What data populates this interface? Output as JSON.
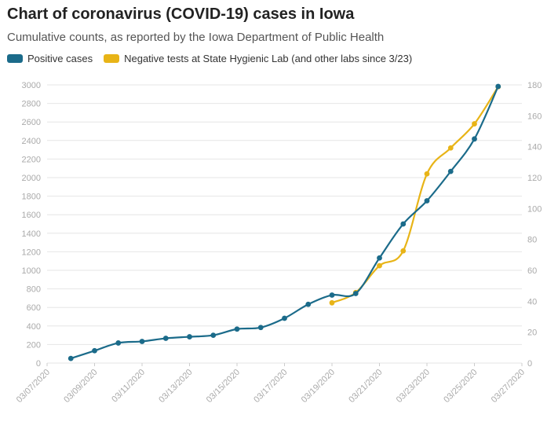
{
  "title": "Chart of coronavirus (COVID-19) cases in Iowa",
  "subtitle": "Cumulative counts, as reported by the Iowa Department of Public Health",
  "colors": {
    "positive": "#1b6b8a",
    "negative": "#e8b417",
    "grid": "#e6e6e6",
    "tick": "#aaaaaa"
  },
  "chart_data": {
    "type": "line",
    "x_dates": [
      "03/07/2020",
      "03/08/2020",
      "03/09/2020",
      "03/10/2020",
      "03/11/2020",
      "03/12/2020",
      "03/13/2020",
      "03/14/2020",
      "03/15/2020",
      "03/16/2020",
      "03/17/2020",
      "03/18/2020",
      "03/19/2020",
      "03/20/2020",
      "03/21/2020",
      "03/22/2020",
      "03/23/2020",
      "03/24/2020",
      "03/25/2020",
      "03/26/2020",
      "03/27/2020"
    ],
    "x_tick_labels": [
      "03/07/2020",
      "03/09/2020",
      "03/11/2020",
      "03/13/2020",
      "03/15/2020",
      "03/17/2020",
      "03/19/2020",
      "03/21/2020",
      "03/23/2020",
      "03/25/2020",
      "03/27/2020"
    ],
    "y_left_ticks": [
      "0",
      "200",
      "400",
      "600",
      "800",
      "1000",
      "1200",
      "1400",
      "1600",
      "1800",
      "2000",
      "2200",
      "2400",
      "2600",
      "2800",
      "3000"
    ],
    "y_right_ticks": [
      "0",
      "20",
      "40",
      "60",
      "80",
      "100",
      "120",
      "140",
      "160",
      "180"
    ],
    "ylim_left": [
      0,
      3000
    ],
    "ylim_right": [
      0,
      180
    ],
    "grid": true,
    "legend_position": "top-left",
    "series": [
      {
        "name": "Negative tests at State Hygienic Lab (and other labs since 3/23)",
        "axis": "left",
        "color": "#e8b417",
        "points": [
          {
            "x": "03/19/2020",
            "y": 650
          },
          {
            "x": "03/20/2020",
            "y": 760
          },
          {
            "x": "03/21/2020",
            "y": 1050
          },
          {
            "x": "03/22/2020",
            "y": 1210
          },
          {
            "x": "03/23/2020",
            "y": 2040
          },
          {
            "x": "03/24/2020",
            "y": 2320
          },
          {
            "x": "03/25/2020",
            "y": 2580
          },
          {
            "x": "03/26/2020",
            "y": 2980
          }
        ]
      },
      {
        "name": "Positive cases",
        "axis": "right",
        "color": "#1b6b8a",
        "points": [
          {
            "x": "03/08/2020",
            "y": 3
          },
          {
            "x": "03/09/2020",
            "y": 8
          },
          {
            "x": "03/10/2020",
            "y": 13
          },
          {
            "x": "03/11/2020",
            "y": 14
          },
          {
            "x": "03/12/2020",
            "y": 16
          },
          {
            "x": "03/13/2020",
            "y": 17
          },
          {
            "x": "03/14/2020",
            "y": 18
          },
          {
            "x": "03/15/2020",
            "y": 22
          },
          {
            "x": "03/16/2020",
            "y": 23
          },
          {
            "x": "03/17/2020",
            "y": 29
          },
          {
            "x": "03/18/2020",
            "y": 38
          },
          {
            "x": "03/19/2020",
            "y": 44
          },
          {
            "x": "03/20/2020",
            "y": 45
          },
          {
            "x": "03/21/2020",
            "y": 68
          },
          {
            "x": "03/22/2020",
            "y": 90
          },
          {
            "x": "03/23/2020",
            "y": 105
          },
          {
            "x": "03/24/2020",
            "y": 124
          },
          {
            "x": "03/25/2020",
            "y": 145
          },
          {
            "x": "03/26/2020",
            "y": 179
          }
        ]
      }
    ]
  }
}
